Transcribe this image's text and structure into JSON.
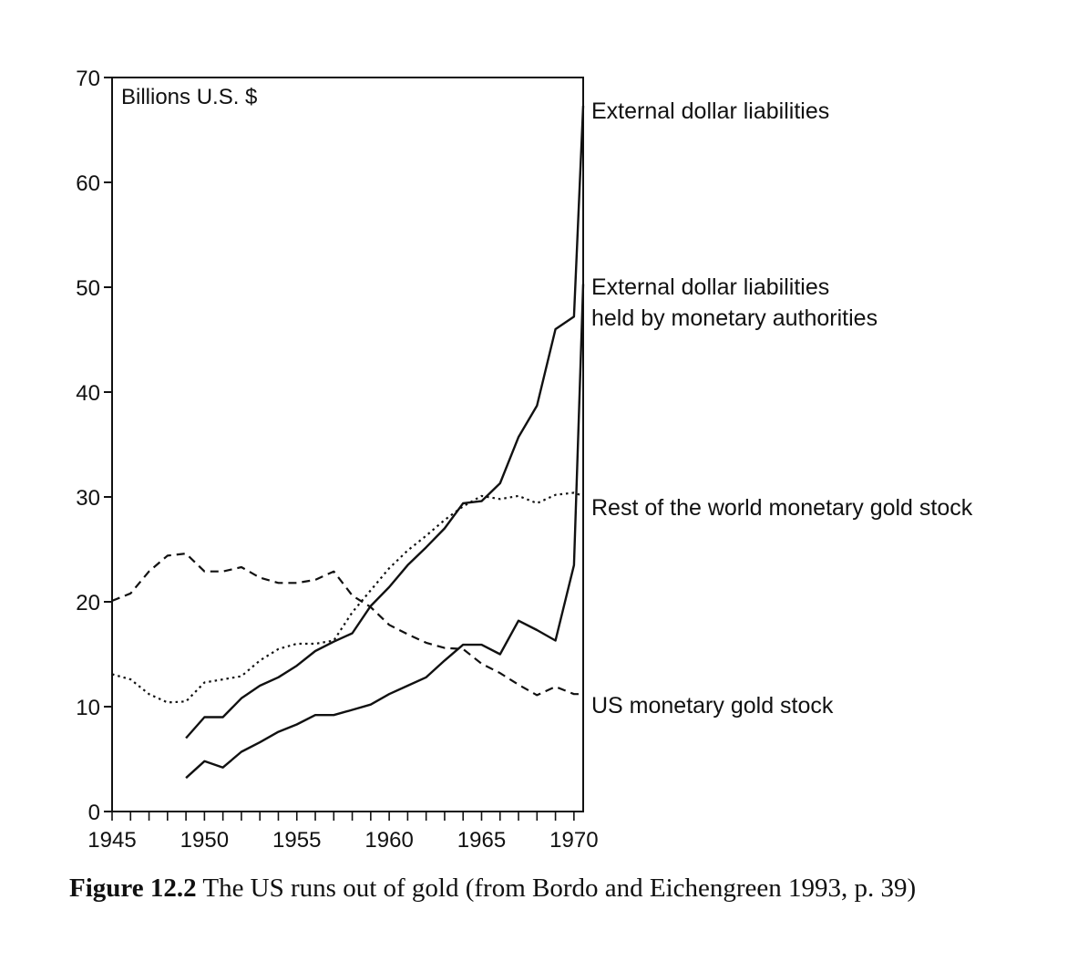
{
  "chart_data": {
    "type": "line",
    "unit_label": "Billions U.S. $",
    "xlim": [
      1945,
      1970.5
    ],
    "ylim": [
      0,
      70
    ],
    "x_ticks": [
      1945,
      1950,
      1955,
      1960,
      1965,
      1970
    ],
    "x_tick_labels": [
      "1945",
      "1950",
      "1955",
      "1960",
      "1965",
      "1970"
    ],
    "y_ticks": [
      0,
      10,
      20,
      30,
      40,
      50,
      60,
      70
    ],
    "y_tick_labels": [
      "0",
      "10",
      "20",
      "30",
      "40",
      "50",
      "60",
      "70"
    ],
    "series": [
      {
        "name": "External dollar liabilities",
        "style": "solid",
        "x": [
          1949,
          1950,
          1951,
          1952,
          1953,
          1954,
          1955,
          1956,
          1957,
          1958,
          1959,
          1960,
          1961,
          1962,
          1963,
          1964,
          1965,
          1966,
          1967,
          1968,
          1969,
          1970,
          1970.5
        ],
        "y": [
          7.0,
          9.0,
          9.0,
          10.8,
          12.0,
          12.8,
          13.9,
          15.3,
          16.2,
          17.0,
          19.6,
          21.4,
          23.5,
          25.2,
          27.0,
          29.4,
          29.6,
          31.3,
          35.7,
          38.7,
          46.0,
          47.2,
          67.3
        ]
      },
      {
        "name": "External dollar liabilities held by monetary authorities",
        "style": "solid",
        "x": [
          1949,
          1950,
          1951,
          1952,
          1953,
          1954,
          1955,
          1956,
          1957,
          1958,
          1959,
          1960,
          1961,
          1962,
          1963,
          1964,
          1965,
          1966,
          1967,
          1968,
          1969,
          1970,
          1970.5
        ],
        "y": [
          3.2,
          4.8,
          4.2,
          5.7,
          6.6,
          7.6,
          8.3,
          9.2,
          9.2,
          9.7,
          10.2,
          11.2,
          12.0,
          12.8,
          14.4,
          15.9,
          15.9,
          15.0,
          18.2,
          17.3,
          16.3,
          23.5,
          50.3
        ]
      },
      {
        "name": "Rest of the world monetary gold stock",
        "style": "dotted",
        "x": [
          1945,
          1946,
          1947,
          1948,
          1949,
          1950,
          1951,
          1952,
          1953,
          1954,
          1955,
          1956,
          1957,
          1958,
          1959,
          1960,
          1961,
          1962,
          1963,
          1964,
          1965,
          1966,
          1967,
          1968,
          1969,
          1970,
          1970.5
        ],
        "y": [
          13.1,
          12.6,
          11.2,
          10.4,
          10.5,
          12.3,
          12.6,
          12.9,
          14.4,
          15.5,
          16.0,
          16.0,
          16.3,
          19.0,
          21.1,
          23.2,
          24.9,
          26.3,
          27.8,
          29.1,
          30.1,
          29.8,
          30.1,
          29.4,
          30.2,
          30.4,
          30.1
        ]
      },
      {
        "name": "US monetary gold stock",
        "style": "dashed",
        "x": [
          1945,
          1946,
          1947,
          1948,
          1949,
          1950,
          1951,
          1952,
          1953,
          1954,
          1955,
          1956,
          1957,
          1958,
          1959,
          1960,
          1961,
          1962,
          1963,
          1964,
          1965,
          1966,
          1967,
          1968,
          1969,
          1970,
          1970.5
        ],
        "y": [
          20.1,
          20.8,
          22.9,
          24.4,
          24.6,
          22.9,
          22.9,
          23.3,
          22.3,
          21.8,
          21.8,
          22.1,
          22.9,
          20.6,
          19.5,
          17.8,
          16.9,
          16.1,
          15.6,
          15.5,
          14.1,
          13.2,
          12.1,
          11.1,
          11.9,
          11.2,
          11.2
        ]
      }
    ]
  },
  "caption": {
    "label": "Figure 12.2",
    "text": " The US runs out of gold (from Bordo and Eichengreen 1993, p. 39)"
  }
}
